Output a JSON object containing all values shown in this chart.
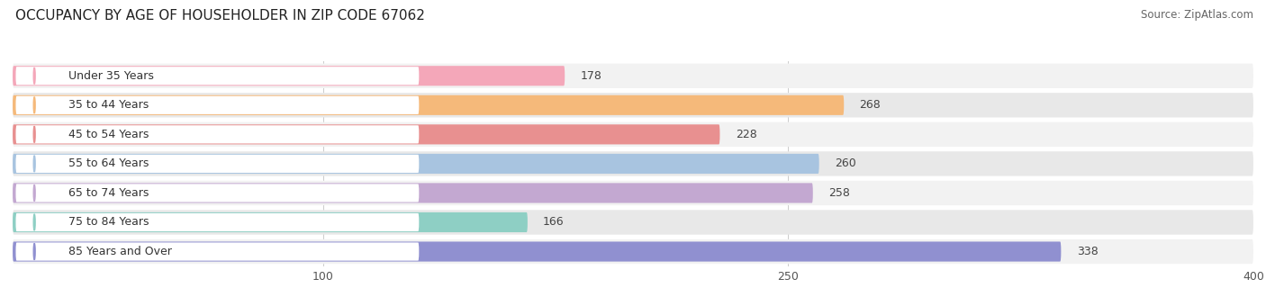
{
  "title": "OCCUPANCY BY AGE OF HOUSEHOLDER IN ZIP CODE 67062",
  "source": "Source: ZipAtlas.com",
  "categories": [
    "Under 35 Years",
    "35 to 44 Years",
    "45 to 54 Years",
    "55 to 64 Years",
    "65 to 74 Years",
    "75 to 84 Years",
    "85 Years and Over"
  ],
  "values": [
    178,
    268,
    228,
    260,
    258,
    166,
    338
  ],
  "bar_colors": [
    "#f4a7b9",
    "#f5b97a",
    "#e89090",
    "#a8c4e0",
    "#c3a8d1",
    "#8ecfc4",
    "#9090d0"
  ],
  "xlim": [
    0,
    400
  ],
  "xticks": [
    100,
    250,
    400
  ],
  "title_fontsize": 11,
  "label_fontsize": 9,
  "value_fontsize": 9,
  "source_fontsize": 8.5,
  "bar_height": 0.68,
  "row_bg_even": "#f2f2f2",
  "row_bg_odd": "#e8e8e8",
  "background_color": "#ffffff"
}
